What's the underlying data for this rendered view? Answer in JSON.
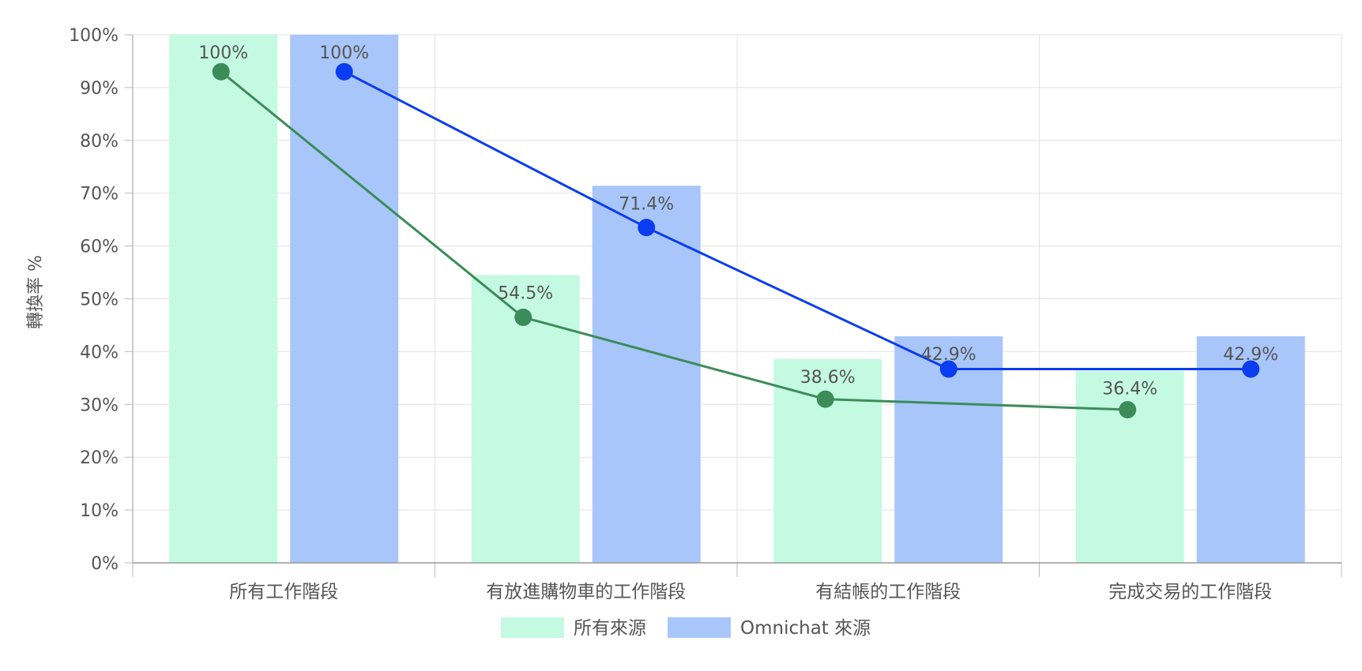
{
  "chart_data": {
    "type": "bar",
    "ylabel": "轉換率 %",
    "ylim": [
      0,
      100
    ],
    "yticks": [
      "0%",
      "10%",
      "20%",
      "30%",
      "40%",
      "50%",
      "60%",
      "70%",
      "80%",
      "90%",
      "100%"
    ],
    "categories": [
      "所有工作階段",
      "有放進購物車的工作階段",
      "有結帳的工作階段",
      "完成交易的工作階段"
    ],
    "series": [
      {
        "name": "所有來源",
        "values": [
          100,
          54.5,
          38.6,
          36.4
        ],
        "labels": [
          "100%",
          "54.5%",
          "38.6%",
          "36.4%"
        ],
        "bar_color": "#c4fae2",
        "line_color": "#3c8c5a",
        "line_values": [
          93,
          46.5,
          31,
          29
        ]
      },
      {
        "name": "Omnichat 來源",
        "values": [
          100,
          71.4,
          42.9,
          42.9
        ],
        "labels": [
          "100%",
          "71.4%",
          "42.9%",
          "42.9%"
        ],
        "bar_color": "#a8c6fa",
        "line_color": "#0a3cf0",
        "line_values": [
          93,
          63.5,
          36.7,
          36.7
        ]
      }
    ],
    "grid": true,
    "legend_position": "bottom"
  }
}
